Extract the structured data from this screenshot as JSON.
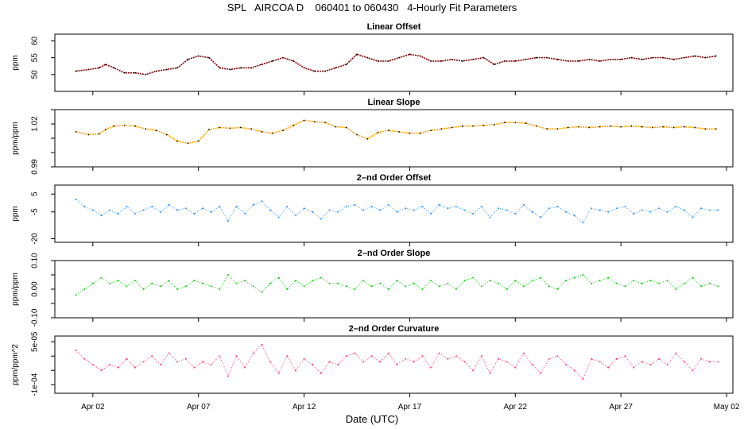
{
  "chart_data": {
    "title": "SPL   AIRCOA D    060401 to 060430   4-Hourly Fit Parameters",
    "xlabel": "Date (UTC)",
    "x_ticks": [
      "Apr 02",
      "Apr 07",
      "Apr 12",
      "Apr 17",
      "Apr 22",
      "Apr 27",
      "May 02"
    ],
    "x_tick_days": [
      2,
      7,
      12,
      17,
      22,
      27,
      32
    ],
    "x_range_days": [
      0.2,
      32.3
    ],
    "panels": [
      {
        "type": "line",
        "title": "Linear Offset",
        "ylabel": "ppm",
        "color": "#8b0000",
        "ylim": [
          45,
          62
        ],
        "yticks": [
          50,
          55,
          60
        ],
        "ytick_labels": [
          "50",
          "55",
          "60"
        ],
        "x": [
          1.2,
          1.8,
          2.3,
          2.6,
          3.0,
          3.5,
          4.0,
          4.5,
          5.0,
          5.5,
          6.0,
          6.5,
          7.0,
          7.5,
          8.0,
          8.5,
          9.0,
          9.5,
          10.0,
          10.5,
          11.0,
          11.5,
          12.0,
          12.5,
          13.0,
          13.5,
          14.0,
          14.5,
          15.0,
          15.5,
          16.0,
          16.5,
          17.0,
          17.5,
          18.0,
          18.5,
          19.0,
          19.5,
          20.0,
          20.5,
          21.0,
          21.5,
          22.0,
          22.5,
          23.0,
          23.5,
          24.0,
          24.5,
          25.0,
          25.5,
          26.0,
          26.5,
          27.0,
          27.5,
          28.0,
          28.5,
          29.0,
          29.5,
          30.0,
          30.5,
          31.0,
          31.5
        ],
        "y": [
          51,
          51.5,
          52,
          53,
          52,
          50.5,
          50.5,
          50,
          51,
          51.5,
          52,
          54.5,
          55.5,
          55,
          52,
          51.5,
          52,
          52,
          53,
          54,
          55,
          54,
          52,
          51,
          51,
          52,
          53,
          56,
          55,
          54,
          54,
          55,
          56,
          55.5,
          54,
          54,
          54.5,
          54,
          54.5,
          55,
          53,
          54,
          54,
          54.5,
          55,
          55,
          54.5,
          54,
          54,
          54.5,
          54,
          54.5,
          54.5,
          55,
          54.5,
          55,
          55,
          54.5,
          55,
          55.5,
          55,
          55.5
        ]
      },
      {
        "type": "line",
        "title": "Linear Slope",
        "ylabel": "ppm/ppm",
        "color": "#ffa500",
        "ylim": [
          0.99,
          1.03
        ],
        "yticks": [
          0.99,
          1.0,
          1.01,
          1.02,
          1.03
        ],
        "ytick_labels": [
          "0.99",
          "",
          "",
          "1.02",
          ""
        ],
        "x": [
          1.2,
          1.8,
          2.3,
          2.6,
          3.0,
          3.5,
          4.0,
          4.5,
          5.0,
          5.5,
          6.0,
          6.5,
          7.0,
          7.5,
          8.0,
          8.5,
          9.0,
          9.5,
          10.0,
          10.5,
          11.0,
          11.5,
          12.0,
          12.5,
          13.0,
          13.5,
          14.0,
          14.5,
          15.0,
          15.5,
          16.0,
          16.5,
          17.0,
          17.5,
          18.0,
          18.5,
          19.0,
          19.5,
          20.0,
          20.5,
          21.0,
          21.5,
          22.0,
          22.5,
          23.0,
          23.5,
          24.0,
          24.5,
          25.0,
          25.5,
          26.0,
          26.5,
          27.0,
          27.5,
          28.0,
          28.5,
          29.0,
          29.5,
          30.0,
          30.5,
          31.0,
          31.5
        ],
        "y": [
          1.0145,
          1.0125,
          1.013,
          1.016,
          1.0185,
          1.019,
          1.0185,
          1.0165,
          1.0155,
          1.0125,
          1.008,
          1.0065,
          1.008,
          1.016,
          1.0175,
          1.017,
          1.0175,
          1.0165,
          1.0145,
          1.0135,
          1.0155,
          1.019,
          1.0225,
          1.0215,
          1.021,
          1.018,
          1.0175,
          1.0125,
          1.0095,
          1.014,
          1.0155,
          1.0145,
          1.0135,
          1.0135,
          1.0155,
          1.0165,
          1.0175,
          1.0185,
          1.0185,
          1.019,
          1.0195,
          1.021,
          1.021,
          1.0205,
          1.0185,
          1.0165,
          1.0165,
          1.0175,
          1.018,
          1.0175,
          1.018,
          1.0185,
          1.018,
          1.0185,
          1.018,
          1.0175,
          1.018,
          1.0175,
          1.018,
          1.0175,
          1.0165,
          1.0165
        ]
      },
      {
        "type": "scatter",
        "title": "2–nd Order Offset",
        "ylabel": "ppm",
        "color": "#1e90ff",
        "ylim": [
          -22,
          10
        ],
        "yticks": [
          -20,
          -5,
          5
        ],
        "ytick_labels": [
          "-20",
          "-5",
          "5"
        ],
        "x": [
          1.2,
          1.6,
          2.0,
          2.4,
          2.8,
          3.2,
          3.6,
          4.0,
          4.4,
          4.8,
          5.2,
          5.6,
          6.0,
          6.4,
          6.8,
          7.2,
          7.6,
          8.0,
          8.4,
          8.8,
          9.2,
          9.6,
          10.0,
          10.4,
          10.8,
          11.2,
          11.6,
          12.0,
          12.4,
          12.8,
          13.2,
          13.6,
          14.0,
          14.4,
          14.8,
          15.2,
          15.6,
          16.0,
          16.4,
          16.8,
          17.2,
          17.6,
          18.0,
          18.4,
          18.8,
          19.2,
          19.6,
          20.0,
          20.4,
          20.8,
          21.2,
          21.6,
          22.0,
          22.4,
          22.8,
          23.2,
          23.6,
          24.0,
          24.4,
          24.8,
          25.2,
          25.6,
          26.0,
          26.4,
          26.8,
          27.2,
          27.6,
          28.0,
          28.4,
          28.8,
          29.2,
          29.6,
          30.0,
          30.4,
          30.8,
          31.2,
          31.6
        ],
        "y": [
          2,
          -2,
          -4,
          -7,
          -4,
          -6,
          -2,
          -6,
          -4,
          -2,
          -5,
          -1,
          -4,
          -3,
          -6,
          -3,
          -5,
          -2,
          -10,
          -2,
          -6,
          -1,
          1,
          -4,
          -8,
          -2,
          -7,
          -3,
          -5,
          -9,
          -4,
          -5,
          -2,
          -1,
          -4,
          -2,
          -4,
          -1,
          -5,
          -3,
          -4,
          -2,
          -6,
          -1,
          -3,
          -2,
          -4,
          -6,
          -2,
          -8,
          -3,
          -4,
          -6,
          -1,
          -5,
          -8,
          -3,
          -2,
          -5,
          -7,
          -11,
          -3,
          -4,
          -5,
          -3,
          -2,
          -6,
          -4,
          -5,
          -3,
          -5,
          -2,
          -4,
          -8,
          -3,
          -4,
          -4
        ]
      },
      {
        "type": "scatter",
        "title": "2–nd Order Slope",
        "ylabel": "ppm/ppm",
        "color": "#00cc00",
        "ylim": [
          -0.1,
          0.1
        ],
        "yticks": [
          -0.1,
          -0.05,
          0.0,
          0.05,
          0.1
        ],
        "ytick_labels": [
          "-0.10",
          "",
          "0.00",
          "",
          "0.10"
        ],
        "x": [
          1.2,
          1.6,
          2.0,
          2.4,
          2.8,
          3.2,
          3.6,
          4.0,
          4.4,
          4.8,
          5.2,
          5.6,
          6.0,
          6.4,
          6.8,
          7.2,
          7.6,
          8.0,
          8.4,
          8.8,
          9.2,
          9.6,
          10.0,
          10.4,
          10.8,
          11.2,
          11.6,
          12.0,
          12.4,
          12.8,
          13.2,
          13.6,
          14.0,
          14.4,
          14.8,
          15.2,
          15.6,
          16.0,
          16.4,
          16.8,
          17.2,
          17.6,
          18.0,
          18.4,
          18.8,
          19.2,
          19.6,
          20.0,
          20.4,
          20.8,
          21.2,
          21.6,
          22.0,
          22.4,
          22.8,
          23.2,
          23.6,
          24.0,
          24.4,
          24.8,
          25.2,
          25.6,
          26.0,
          26.4,
          26.8,
          27.2,
          27.6,
          28.0,
          28.4,
          28.8,
          29.2,
          29.6,
          30.0,
          30.4,
          30.8,
          31.2,
          31.6
        ],
        "y": [
          -0.02,
          0.0,
          0.02,
          0.04,
          0.02,
          0.03,
          0.01,
          0.03,
          0.0,
          0.02,
          0.01,
          0.03,
          0.0,
          0.01,
          0.03,
          0.02,
          0.01,
          0.0,
          0.05,
          0.02,
          0.03,
          0.01,
          -0.01,
          0.02,
          0.04,
          0.0,
          0.03,
          0.01,
          0.03,
          0.04,
          0.02,
          0.02,
          0.01,
          0.0,
          0.03,
          0.01,
          0.02,
          0.0,
          0.03,
          0.01,
          0.02,
          0.0,
          0.03,
          0.01,
          0.02,
          0.0,
          0.03,
          0.04,
          0.01,
          0.03,
          0.02,
          0.0,
          0.03,
          0.01,
          0.03,
          0.04,
          0.01,
          0.0,
          0.03,
          0.04,
          0.05,
          0.02,
          0.03,
          0.04,
          0.02,
          0.01,
          0.03,
          0.02,
          0.03,
          0.02,
          0.03,
          0.0,
          0.02,
          0.04,
          0.01,
          0.02,
          0.01
        ]
      },
      {
        "type": "scatter",
        "title": "2–nd Order Curvature",
        "ylabel": "ppm/ppm^2",
        "color": "#ff3366",
        "ylim": [
          -0.00013,
          7e-05
        ],
        "yticks": [
          -0.0001,
          -5e-05,
          0.0,
          5e-05
        ],
        "ytick_labels": [
          "-1e-04",
          "",
          "",
          "5e-05"
        ],
        "x": [
          1.2,
          1.6,
          2.0,
          2.4,
          2.8,
          3.2,
          3.6,
          4.0,
          4.4,
          4.8,
          5.2,
          5.6,
          6.0,
          6.4,
          6.8,
          7.2,
          7.6,
          8.0,
          8.4,
          8.8,
          9.2,
          9.6,
          10.0,
          10.4,
          10.8,
          11.2,
          11.6,
          12.0,
          12.4,
          12.8,
          13.2,
          13.6,
          14.0,
          14.4,
          14.8,
          15.2,
          15.6,
          16.0,
          16.4,
          16.8,
          17.2,
          17.6,
          18.0,
          18.4,
          18.8,
          19.2,
          19.6,
          20.0,
          20.4,
          20.8,
          21.2,
          21.6,
          22.0,
          22.4,
          22.8,
          23.2,
          23.6,
          24.0,
          24.4,
          24.8,
          25.2,
          25.6,
          26.0,
          26.4,
          26.8,
          27.2,
          27.6,
          28.0,
          28.4,
          28.8,
          29.2,
          29.6,
          30.0,
          30.4,
          30.8,
          31.2,
          31.6
        ],
        "y": [
          2e-05,
          -1e-05,
          -3e-05,
          -5e-05,
          -3e-05,
          -4e-05,
          -1e-05,
          -4e-05,
          -2e-05,
          0.0,
          -3e-05,
          1e-05,
          -2e-05,
          -1e-05,
          -4e-05,
          -2e-05,
          -3e-05,
          0.0,
          -7e-05,
          0.0,
          -4e-05,
          1e-05,
          4e-05,
          -2e-05,
          -6e-05,
          0.0,
          -5e-05,
          -1e-05,
          -3e-05,
          -6e-05,
          -2e-05,
          -3e-05,
          0.0,
          1e-05,
          -2e-05,
          0.0,
          -2e-05,
          1e-05,
          -3e-05,
          -1e-05,
          -2e-05,
          0.0,
          -4e-05,
          1e-05,
          -1e-05,
          0.0,
          -2e-05,
          -5e-05,
          0.0,
          -6e-05,
          -1e-05,
          -2e-05,
          -4e-05,
          1e-05,
          -3e-05,
          -6e-05,
          -1e-05,
          0.0,
          -3e-05,
          -5e-05,
          -8e-05,
          -1e-05,
          -2e-05,
          -4e-05,
          -1e-05,
          0.0,
          -4e-05,
          -2e-05,
          -3e-05,
          -1e-05,
          -3e-05,
          1e-05,
          -2e-05,
          -5e-05,
          -1e-05,
          -2e-05,
          -2e-05
        ]
      }
    ]
  }
}
